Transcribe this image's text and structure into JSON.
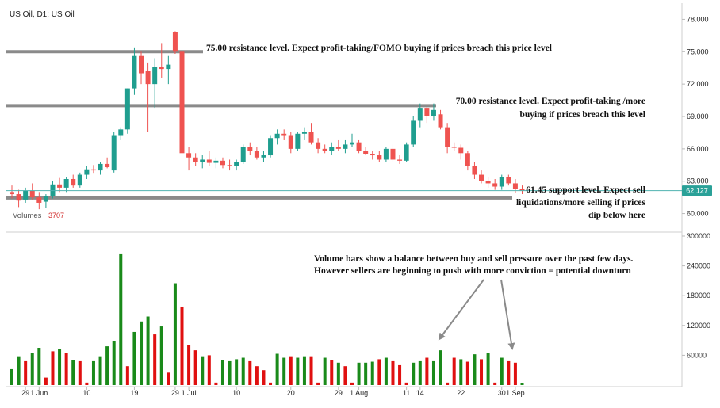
{
  "header": {
    "symbol_title": "US Oil, D1: US Oil"
  },
  "colors": {
    "bull": "#1f9e8f",
    "bear": "#ef5350",
    "vol_up": "#1a8a1a",
    "vol_down": "#e01010",
    "level_line": "#8a8a8a",
    "current_line": "#4fb3b0",
    "current_tag": "#2aa198"
  },
  "current_price": {
    "value": 62.127,
    "label": "62.127"
  },
  "volume_panel": {
    "label": "Volumes",
    "value": "3707"
  },
  "annotations": {
    "resistance_75": "75.00 resistance level. Expect profit-taking/FOMO buying if prices breach this price level",
    "resistance_70_line1": "70.00 resistance level. Expect profit-taking /more",
    "resistance_70_line2": "buying if prices breach this level",
    "support_line1": "61.45 support level. Expect sell",
    "support_line2": "liquidations/more selling if prices",
    "support_line3": "dip below here",
    "volume_note_line1": "Volume bars show a balance between buy and sell pressure over the past few days.",
    "volume_note_line2": "However sellers are beginning to push with more conviction = potential downturn"
  },
  "chart_data": [
    {
      "type": "candlestick",
      "title": "US Oil, D1: US Oil",
      "ylim": [
        58.5,
        79.5
      ],
      "y_ticks": [
        "60.000",
        "63.000",
        "66.000",
        "69.000",
        "72.000",
        "75.000",
        "78.000"
      ],
      "y_tick_values": [
        60,
        63,
        66,
        69,
        72,
        75,
        78
      ],
      "x_ticks": [
        {
          "label": "29",
          "index": 2
        },
        {
          "label": "1 Jun",
          "index": 4
        },
        {
          "label": "10",
          "index": 11
        },
        {
          "label": "19",
          "index": 18
        },
        {
          "label": "29",
          "index": 24
        },
        {
          "label": "1 Jul",
          "index": 26
        },
        {
          "label": "10",
          "index": 33
        },
        {
          "label": "20",
          "index": 41
        },
        {
          "label": "29",
          "index": 48
        },
        {
          "label": "1 Aug",
          "index": 51
        },
        {
          "label": "11",
          "index": 58
        },
        {
          "label": "14",
          "index": 60
        },
        {
          "label": "22",
          "index": 66
        },
        {
          "label": "30",
          "index": 72
        },
        {
          "label": "1 Sep",
          "index": 74
        }
      ],
      "levels": [
        {
          "value": 75.0,
          "name": "resistance_75"
        },
        {
          "value": 70.0,
          "name": "resistance_70"
        },
        {
          "value": 61.45,
          "name": "support"
        }
      ],
      "candles": [
        {
          "o": 62.0,
          "h": 62.6,
          "l": 61.4,
          "c": 61.8
        },
        {
          "o": 61.8,
          "h": 62.2,
          "l": 60.6,
          "c": 61.2
        },
        {
          "o": 61.3,
          "h": 62.4,
          "l": 61.0,
          "c": 62.1
        },
        {
          "o": 62.1,
          "h": 62.8,
          "l": 61.3,
          "c": 61.5
        },
        {
          "o": 61.5,
          "h": 62.0,
          "l": 60.4,
          "c": 61.0
        },
        {
          "o": 61.1,
          "h": 61.8,
          "l": 60.5,
          "c": 61.6
        },
        {
          "o": 61.6,
          "h": 63.0,
          "l": 61.4,
          "c": 62.7
        },
        {
          "o": 62.7,
          "h": 63.3,
          "l": 62.0,
          "c": 62.4
        },
        {
          "o": 62.4,
          "h": 63.4,
          "l": 62.0,
          "c": 63.2
        },
        {
          "o": 63.2,
          "h": 63.6,
          "l": 62.4,
          "c": 62.6
        },
        {
          "o": 62.6,
          "h": 63.8,
          "l": 62.4,
          "c": 63.6
        },
        {
          "o": 63.6,
          "h": 64.4,
          "l": 63.2,
          "c": 64.1
        },
        {
          "o": 64.1,
          "h": 64.5,
          "l": 63.7,
          "c": 64.0
        },
        {
          "o": 64.0,
          "h": 64.8,
          "l": 63.6,
          "c": 64.6
        },
        {
          "o": 64.6,
          "h": 65.2,
          "l": 64.2,
          "c": 64.3
        },
        {
          "o": 64.0,
          "h": 67.6,
          "l": 63.8,
          "c": 67.2
        },
        {
          "o": 67.2,
          "h": 68.0,
          "l": 66.8,
          "c": 67.8
        },
        {
          "o": 67.8,
          "h": 71.6,
          "l": 67.4,
          "c": 71.6
        },
        {
          "o": 71.6,
          "h": 75.4,
          "l": 71.0,
          "c": 74.6
        },
        {
          "o": 74.6,
          "h": 75.0,
          "l": 72.0,
          "c": 73.0
        },
        {
          "o": 73.2,
          "h": 74.0,
          "l": 67.6,
          "c": 72.0
        },
        {
          "o": 72.0,
          "h": 74.4,
          "l": 69.8,
          "c": 73.6
        },
        {
          "o": 73.6,
          "h": 75.8,
          "l": 72.6,
          "c": 73.4
        },
        {
          "o": 73.4,
          "h": 74.6,
          "l": 72.0,
          "c": 73.8
        },
        {
          "o": 76.8,
          "h": 76.9,
          "l": 74.8,
          "c": 75.0
        },
        {
          "o": 75.0,
          "h": 75.4,
          "l": 64.4,
          "c": 65.6
        },
        {
          "o": 65.6,
          "h": 66.2,
          "l": 64.0,
          "c": 65.2
        },
        {
          "o": 65.2,
          "h": 65.6,
          "l": 64.4,
          "c": 64.8
        },
        {
          "o": 64.8,
          "h": 65.4,
          "l": 64.2,
          "c": 65.0
        },
        {
          "o": 65.0,
          "h": 65.8,
          "l": 64.4,
          "c": 64.7
        },
        {
          "o": 64.7,
          "h": 65.2,
          "l": 64.2,
          "c": 64.9
        },
        {
          "o": 64.9,
          "h": 65.2,
          "l": 64.2,
          "c": 64.5
        },
        {
          "o": 64.5,
          "h": 65.0,
          "l": 64.0,
          "c": 64.4
        },
        {
          "o": 64.4,
          "h": 65.0,
          "l": 64.0,
          "c": 64.8
        },
        {
          "o": 64.8,
          "h": 66.4,
          "l": 64.6,
          "c": 66.2
        },
        {
          "o": 66.2,
          "h": 66.6,
          "l": 65.4,
          "c": 65.8
        },
        {
          "o": 65.8,
          "h": 66.2,
          "l": 65.0,
          "c": 65.2
        },
        {
          "o": 65.2,
          "h": 65.8,
          "l": 64.8,
          "c": 65.4
        },
        {
          "o": 65.4,
          "h": 67.2,
          "l": 65.2,
          "c": 67.0
        },
        {
          "o": 67.0,
          "h": 67.8,
          "l": 66.4,
          "c": 67.4
        },
        {
          "o": 67.4,
          "h": 67.8,
          "l": 66.8,
          "c": 67.2
        },
        {
          "o": 67.2,
          "h": 67.6,
          "l": 65.6,
          "c": 66.0
        },
        {
          "o": 66.0,
          "h": 67.6,
          "l": 65.8,
          "c": 67.4
        },
        {
          "o": 67.4,
          "h": 68.0,
          "l": 66.8,
          "c": 67.6
        },
        {
          "o": 67.6,
          "h": 68.4,
          "l": 66.4,
          "c": 66.6
        },
        {
          "o": 66.6,
          "h": 67.0,
          "l": 65.6,
          "c": 66.0
        },
        {
          "o": 66.0,
          "h": 66.4,
          "l": 65.6,
          "c": 65.8
        },
        {
          "o": 65.8,
          "h": 66.6,
          "l": 65.4,
          "c": 66.2
        },
        {
          "o": 66.2,
          "h": 66.8,
          "l": 65.8,
          "c": 66.0
        },
        {
          "o": 66.0,
          "h": 66.8,
          "l": 65.6,
          "c": 66.4
        },
        {
          "o": 66.4,
          "h": 67.4,
          "l": 66.2,
          "c": 66.6
        },
        {
          "o": 66.6,
          "h": 66.8,
          "l": 65.6,
          "c": 65.8
        },
        {
          "o": 65.8,
          "h": 66.2,
          "l": 65.4,
          "c": 65.5
        },
        {
          "o": 65.5,
          "h": 65.8,
          "l": 65.0,
          "c": 65.4
        },
        {
          "o": 65.4,
          "h": 65.8,
          "l": 64.8,
          "c": 65.0
        },
        {
          "o": 65.0,
          "h": 66.2,
          "l": 64.8,
          "c": 66.0
        },
        {
          "o": 66.0,
          "h": 66.4,
          "l": 64.8,
          "c": 65.0
        },
        {
          "o": 65.0,
          "h": 65.4,
          "l": 64.6,
          "c": 64.9
        },
        {
          "o": 64.9,
          "h": 66.6,
          "l": 64.8,
          "c": 66.4
        },
        {
          "o": 66.4,
          "h": 69.0,
          "l": 66.2,
          "c": 68.6
        },
        {
          "o": 68.6,
          "h": 70.2,
          "l": 68.0,
          "c": 69.8
        },
        {
          "o": 69.8,
          "h": 70.0,
          "l": 68.4,
          "c": 69.0
        },
        {
          "o": 69.0,
          "h": 70.2,
          "l": 68.6,
          "c": 69.6
        },
        {
          "o": 69.2,
          "h": 69.6,
          "l": 67.8,
          "c": 68.0
        },
        {
          "o": 68.0,
          "h": 68.4,
          "l": 65.6,
          "c": 66.2
        },
        {
          "o": 66.2,
          "h": 66.6,
          "l": 65.8,
          "c": 66.1
        },
        {
          "o": 66.1,
          "h": 66.4,
          "l": 65.0,
          "c": 65.6
        },
        {
          "o": 65.6,
          "h": 65.8,
          "l": 64.0,
          "c": 64.4
        },
        {
          "o": 64.4,
          "h": 64.8,
          "l": 63.2,
          "c": 63.6
        },
        {
          "o": 63.6,
          "h": 64.0,
          "l": 62.8,
          "c": 63.0
        },
        {
          "o": 63.0,
          "h": 63.4,
          "l": 62.4,
          "c": 62.8
        },
        {
          "o": 62.8,
          "h": 63.2,
          "l": 62.2,
          "c": 62.5
        },
        {
          "o": 62.5,
          "h": 63.6,
          "l": 62.2,
          "c": 63.4
        },
        {
          "o": 63.4,
          "h": 63.6,
          "l": 62.6,
          "c": 62.8
        },
        {
          "o": 62.8,
          "h": 63.2,
          "l": 61.9,
          "c": 62.3
        },
        {
          "o": 62.3,
          "h": 62.6,
          "l": 61.8,
          "c": 62.1
        }
      ]
    },
    {
      "type": "bar",
      "title": "Volumes",
      "ylim": [
        0,
        300000
      ],
      "y_ticks": [
        "60000",
        "120000",
        "180000",
        "240000",
        "300000"
      ],
      "y_tick_values": [
        60000,
        120000,
        180000,
        240000,
        300000
      ],
      "values": [
        32000,
        58000,
        48000,
        65000,
        75000,
        15000,
        68000,
        72000,
        65000,
        50000,
        48000,
        5000,
        48000,
        58000,
        78000,
        88000,
        265000,
        38000,
        107000,
        128000,
        138000,
        102000,
        118000,
        25000,
        205000,
        158000,
        80000,
        70000,
        58000,
        60000,
        5000,
        50000,
        48000,
        52000,
        55000,
        48000,
        38000,
        30000,
        5000,
        63000,
        55000,
        58000,
        55000,
        58000,
        58000,
        5000,
        55000,
        50000,
        45000,
        38000,
        5000,
        45000,
        45000,
        47000,
        52000,
        55000,
        48000,
        40000,
        5000,
        45000,
        48000,
        55000,
        48000,
        70000,
        5000,
        55000,
        52000,
        47000,
        62000,
        52000,
        65000,
        5000,
        55000,
        48000,
        45000,
        3707
      ],
      "up": [
        true,
        true,
        false,
        true,
        true,
        false,
        false,
        true,
        false,
        true,
        false,
        false,
        true,
        true,
        true,
        true,
        true,
        false,
        true,
        true,
        true,
        false,
        true,
        false,
        true,
        false,
        false,
        false,
        true,
        false,
        false,
        true,
        true,
        true,
        true,
        false,
        false,
        false,
        false,
        true,
        true,
        false,
        true,
        true,
        false,
        false,
        true,
        false,
        true,
        false,
        false,
        true,
        true,
        true,
        false,
        true,
        false,
        false,
        false,
        true,
        true,
        false,
        true,
        true,
        false,
        false,
        true,
        false,
        true,
        false,
        true,
        false,
        true,
        false,
        false,
        true
      ]
    }
  ]
}
